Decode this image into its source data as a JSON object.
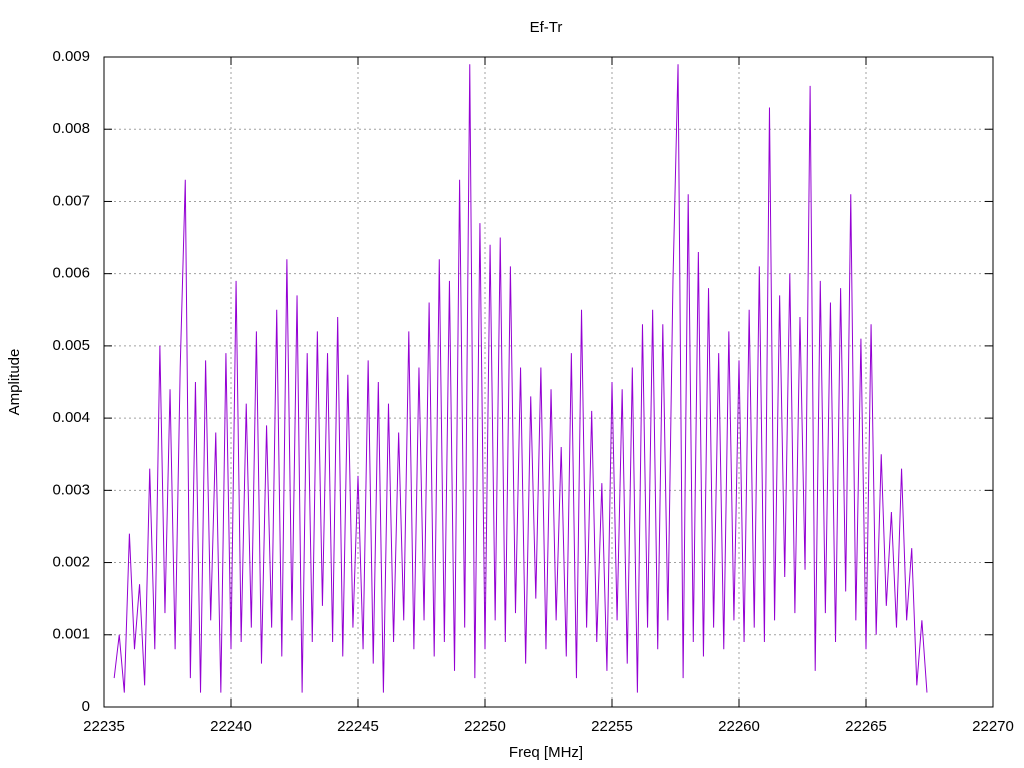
{
  "chart_data": {
    "type": "line",
    "title": "Ef-Tr",
    "x_label": "Freq [MHz]",
    "y_label": "Amplitude",
    "color": "#9400d3",
    "grid": true,
    "xlim": [
      22235,
      22270
    ],
    "xticks": [
      22235,
      22240,
      22245,
      22250,
      22255,
      22260,
      22265,
      22270
    ],
    "ylim": [
      0,
      0.009
    ],
    "yticks": [
      0,
      0.001,
      0.002,
      0.003,
      0.004,
      0.005,
      0.006,
      0.007,
      0.008,
      0.009
    ],
    "x": [
      22235.4,
      22235.6,
      22235.8,
      22236,
      22236.2,
      22236.4,
      22236.6,
      22236.8,
      22237,
      22237.2,
      22237.4,
      22237.6,
      22237.8,
      22238,
      22238.2,
      22238.4,
      22238.6,
      22238.8,
      22239,
      22239.2,
      22239.4,
      22239.6,
      22239.8,
      22240,
      22240.2,
      22240.4,
      22240.6,
      22240.8,
      22241,
      22241.2,
      22241.4,
      22241.6,
      22241.8,
      22242,
      22242.2,
      22242.4,
      22242.6,
      22242.8,
      22243,
      22243.2,
      22243.4,
      22243.6,
      22243.8,
      22244,
      22244.2,
      22244.4,
      22244.6,
      22244.8,
      22245,
      22245.2,
      22245.4,
      22245.6,
      22245.8,
      22246,
      22246.2,
      22246.4,
      22246.6,
      22246.8,
      22247,
      22247.2,
      22247.4,
      22247.6,
      22247.8,
      22248,
      22248.2,
      22248.4,
      22248.6,
      22248.8,
      22249,
      22249.2,
      22249.4,
      22249.6,
      22249.8,
      22250,
      22250.2,
      22250.4,
      22250.6,
      22250.8,
      22251,
      22251.2,
      22251.4,
      22251.6,
      22251.8,
      22252,
      22252.2,
      22252.4,
      22252.6,
      22252.8,
      22253,
      22253.2,
      22253.4,
      22253.6,
      22253.8,
      22254,
      22254.2,
      22254.4,
      22254.6,
      22254.8,
      22255,
      22255.2,
      22255.4,
      22255.6,
      22255.8,
      22256,
      22256.2,
      22256.4,
      22256.6,
      22256.8,
      22257,
      22257.2,
      22257.4,
      22257.6,
      22257.8,
      22258,
      22258.2,
      22258.4,
      22258.6,
      22258.8,
      22259,
      22259.2,
      22259.4,
      22259.6,
      22259.8,
      22260,
      22260.2,
      22260.4,
      22260.6,
      22260.8,
      22261,
      22261.2,
      22261.4,
      22261.6,
      22261.8,
      22262,
      22262.2,
      22262.4,
      22262.6,
      22262.8,
      22263,
      22263.2,
      22263.4,
      22263.6,
      22263.8,
      22264,
      22264.2,
      22264.4,
      22264.6,
      22264.8,
      22265,
      22265.2,
      22265.4,
      22265.6,
      22265.8,
      22266,
      22266.2,
      22266.4,
      22266.6,
      22266.8,
      22267,
      22267.2,
      22267.4
    ],
    "values": [
      0.0004,
      0.001,
      0.0002,
      0.0024,
      0.0008,
      0.0017,
      0.0003,
      0.0033,
      0.0008,
      0.005,
      0.0013,
      0.0044,
      0.0008,
      0.0047,
      0.0073,
      0.0004,
      0.0045,
      0.0002,
      0.0048,
      0.0012,
      0.0038,
      0.0002,
      0.0049,
      0.0008,
      0.0059,
      0.0009,
      0.0042,
      0.0011,
      0.0052,
      0.0006,
      0.0039,
      0.0011,
      0.0055,
      0.0007,
      0.0062,
      0.0012,
      0.0057,
      0.0002,
      0.0049,
      0.0009,
      0.0052,
      0.0014,
      0.0049,
      0.0009,
      0.0054,
      0.0007,
      0.0046,
      0.0011,
      0.0032,
      0.0008,
      0.0048,
      0.0006,
      0.0045,
      0.0002,
      0.0042,
      0.0009,
      0.0038,
      0.0012,
      0.0052,
      0.0008,
      0.0047,
      0.0012,
      0.0056,
      0.0007,
      0.0062,
      0.0009,
      0.0059,
      0.0005,
      0.0073,
      0.0011,
      0.0089,
      0.0004,
      0.0067,
      0.0008,
      0.0064,
      0.0012,
      0.0065,
      0.0009,
      0.0061,
      0.0013,
      0.0047,
      0.0006,
      0.0043,
      0.0015,
      0.0047,
      0.0008,
      0.0044,
      0.0012,
      0.0036,
      0.0007,
      0.0049,
      0.0004,
      0.0055,
      0.0011,
      0.0041,
      0.0009,
      0.0031,
      0.0005,
      0.0045,
      0.0012,
      0.0044,
      0.0006,
      0.0047,
      0.0002,
      0.0053,
      0.0011,
      0.0055,
      0.0008,
      0.0053,
      0.0012,
      0.0059,
      0.0089,
      0.0004,
      0.0071,
      0.0009,
      0.0063,
      0.0007,
      0.0058,
      0.0011,
      0.0049,
      0.0008,
      0.0052,
      0.0012,
      0.0048,
      0.0009,
      0.0055,
      0.0011,
      0.0061,
      0.0009,
      0.0083,
      0.0012,
      0.0057,
      0.0018,
      0.006,
      0.0013,
      0.0054,
      0.0019,
      0.0086,
      0.0005,
      0.0059,
      0.0013,
      0.0056,
      0.0009,
      0.0058,
      0.0016,
      0.0071,
      0.0012,
      0.0051,
      0.0008,
      0.0053,
      0.001,
      0.0035,
      0.0014,
      0.0027,
      0.0011,
      0.0033,
      0.0012,
      0.0022,
      0.0003,
      0.0012,
      0.0002
    ]
  }
}
